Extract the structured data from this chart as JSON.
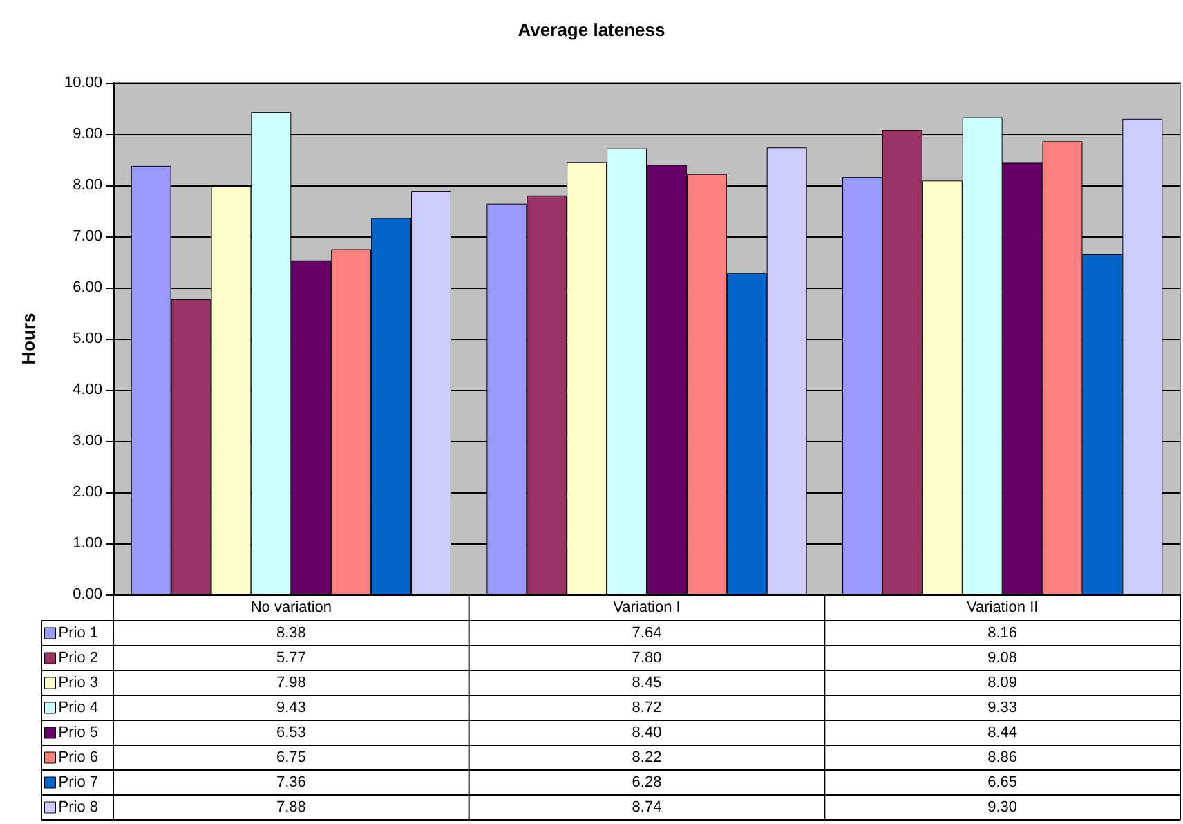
{
  "chart_data": {
    "type": "bar",
    "title": "Average lateness",
    "ylabel": "Hours",
    "categories": [
      "No variation",
      "Variation I",
      "Variation II"
    ],
    "series": [
      {
        "name": "Prio 1",
        "color": "#9999ff",
        "values": [
          8.38,
          7.64,
          8.16
        ],
        "value_labels": [
          "8.38",
          "7.64",
          "8.16"
        ]
      },
      {
        "name": "Prio 2",
        "color": "#993366",
        "values": [
          5.77,
          7.8,
          9.08
        ],
        "value_labels": [
          "5.77",
          "7.80",
          "9.08"
        ]
      },
      {
        "name": "Prio 3",
        "color": "#ffffcc",
        "values": [
          7.98,
          8.45,
          8.09
        ],
        "value_labels": [
          "7.98",
          "8.45",
          "8.09"
        ]
      },
      {
        "name": "Prio 4",
        "color": "#ccffff",
        "values": [
          9.43,
          8.72,
          9.33
        ],
        "value_labels": [
          "9.43",
          "8.72",
          "9.33"
        ]
      },
      {
        "name": "Prio 5",
        "color": "#660066",
        "values": [
          6.53,
          8.4,
          8.44
        ],
        "value_labels": [
          "6.53",
          "8.40",
          "8.44"
        ]
      },
      {
        "name": "Prio 6",
        "color": "#ff8080",
        "values": [
          6.75,
          8.22,
          8.86
        ],
        "value_labels": [
          "6.75",
          "8.22",
          "8.86"
        ]
      },
      {
        "name": "Prio 7",
        "color": "#0066cc",
        "values": [
          7.36,
          6.28,
          6.65
        ],
        "value_labels": [
          "7.36",
          "6.28",
          "6.65"
        ]
      },
      {
        "name": "Prio 8",
        "color": "#ccccff",
        "values": [
          7.88,
          8.74,
          9.3
        ],
        "value_labels": [
          "7.88",
          "8.74",
          "9.30"
        ]
      }
    ],
    "ylim": [
      0,
      10
    ],
    "yticks": [
      {
        "value": 0,
        "label": "0.00"
      },
      {
        "value": 1,
        "label": "1.00"
      },
      {
        "value": 2,
        "label": "2.00"
      },
      {
        "value": 3,
        "label": "3.00"
      },
      {
        "value": 4,
        "label": "4.00"
      },
      {
        "value": 5,
        "label": "5.00"
      },
      {
        "value": 6,
        "label": "6.00"
      },
      {
        "value": 7,
        "label": "7.00"
      },
      {
        "value": 8,
        "label": "8.00"
      },
      {
        "value": 9,
        "label": "9.00"
      },
      {
        "value": 10,
        "label": "10.00"
      }
    ],
    "grid": "y",
    "legend": "bottom"
  }
}
